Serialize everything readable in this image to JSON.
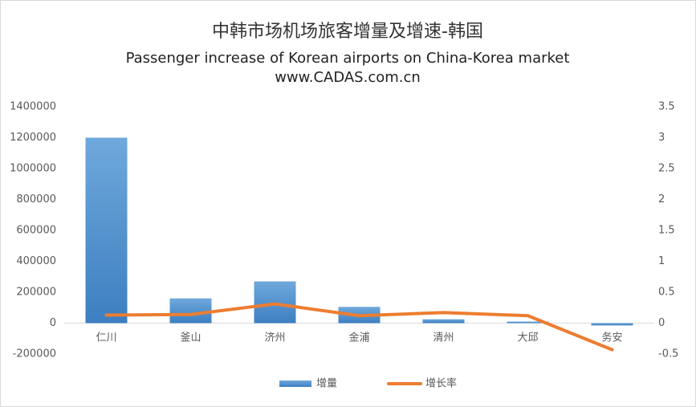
{
  "chart_data": {
    "type": "bar-line",
    "title": "中韩市场机场旅客增量及增速-韩国",
    "subtitle": "Passenger increase of Korean airports on China-Korea market",
    "source": "www.CADAS.com.cn",
    "categories": [
      "仁川",
      "釜山",
      "济州",
      "金浦",
      "清州",
      "大邱",
      "务安"
    ],
    "series": [
      {
        "name": "增量",
        "color": "#5b9bd5",
        "values": [
          1200000,
          160000,
          270000,
          105000,
          25000,
          10000,
          -15000
        ]
      },
      {
        "name": "增长率",
        "color": "#ed7d31",
        "axis": "y2",
        "values": [
          0.13,
          0.14,
          0.31,
          0.12,
          0.17,
          0.12,
          -0.43
        ]
      }
    ],
    "ylim": [
      -200000,
      1400000
    ],
    "yticks": [
      -200000,
      0,
      200000,
      400000,
      600000,
      800000,
      1000000,
      1200000,
      1400000
    ],
    "y2lim": [
      -0.5,
      3.5
    ],
    "y2ticks": [
      -0.5,
      0,
      0.5,
      1,
      1.5,
      2,
      2.5,
      3,
      3.5
    ],
    "legend": "bottom"
  }
}
